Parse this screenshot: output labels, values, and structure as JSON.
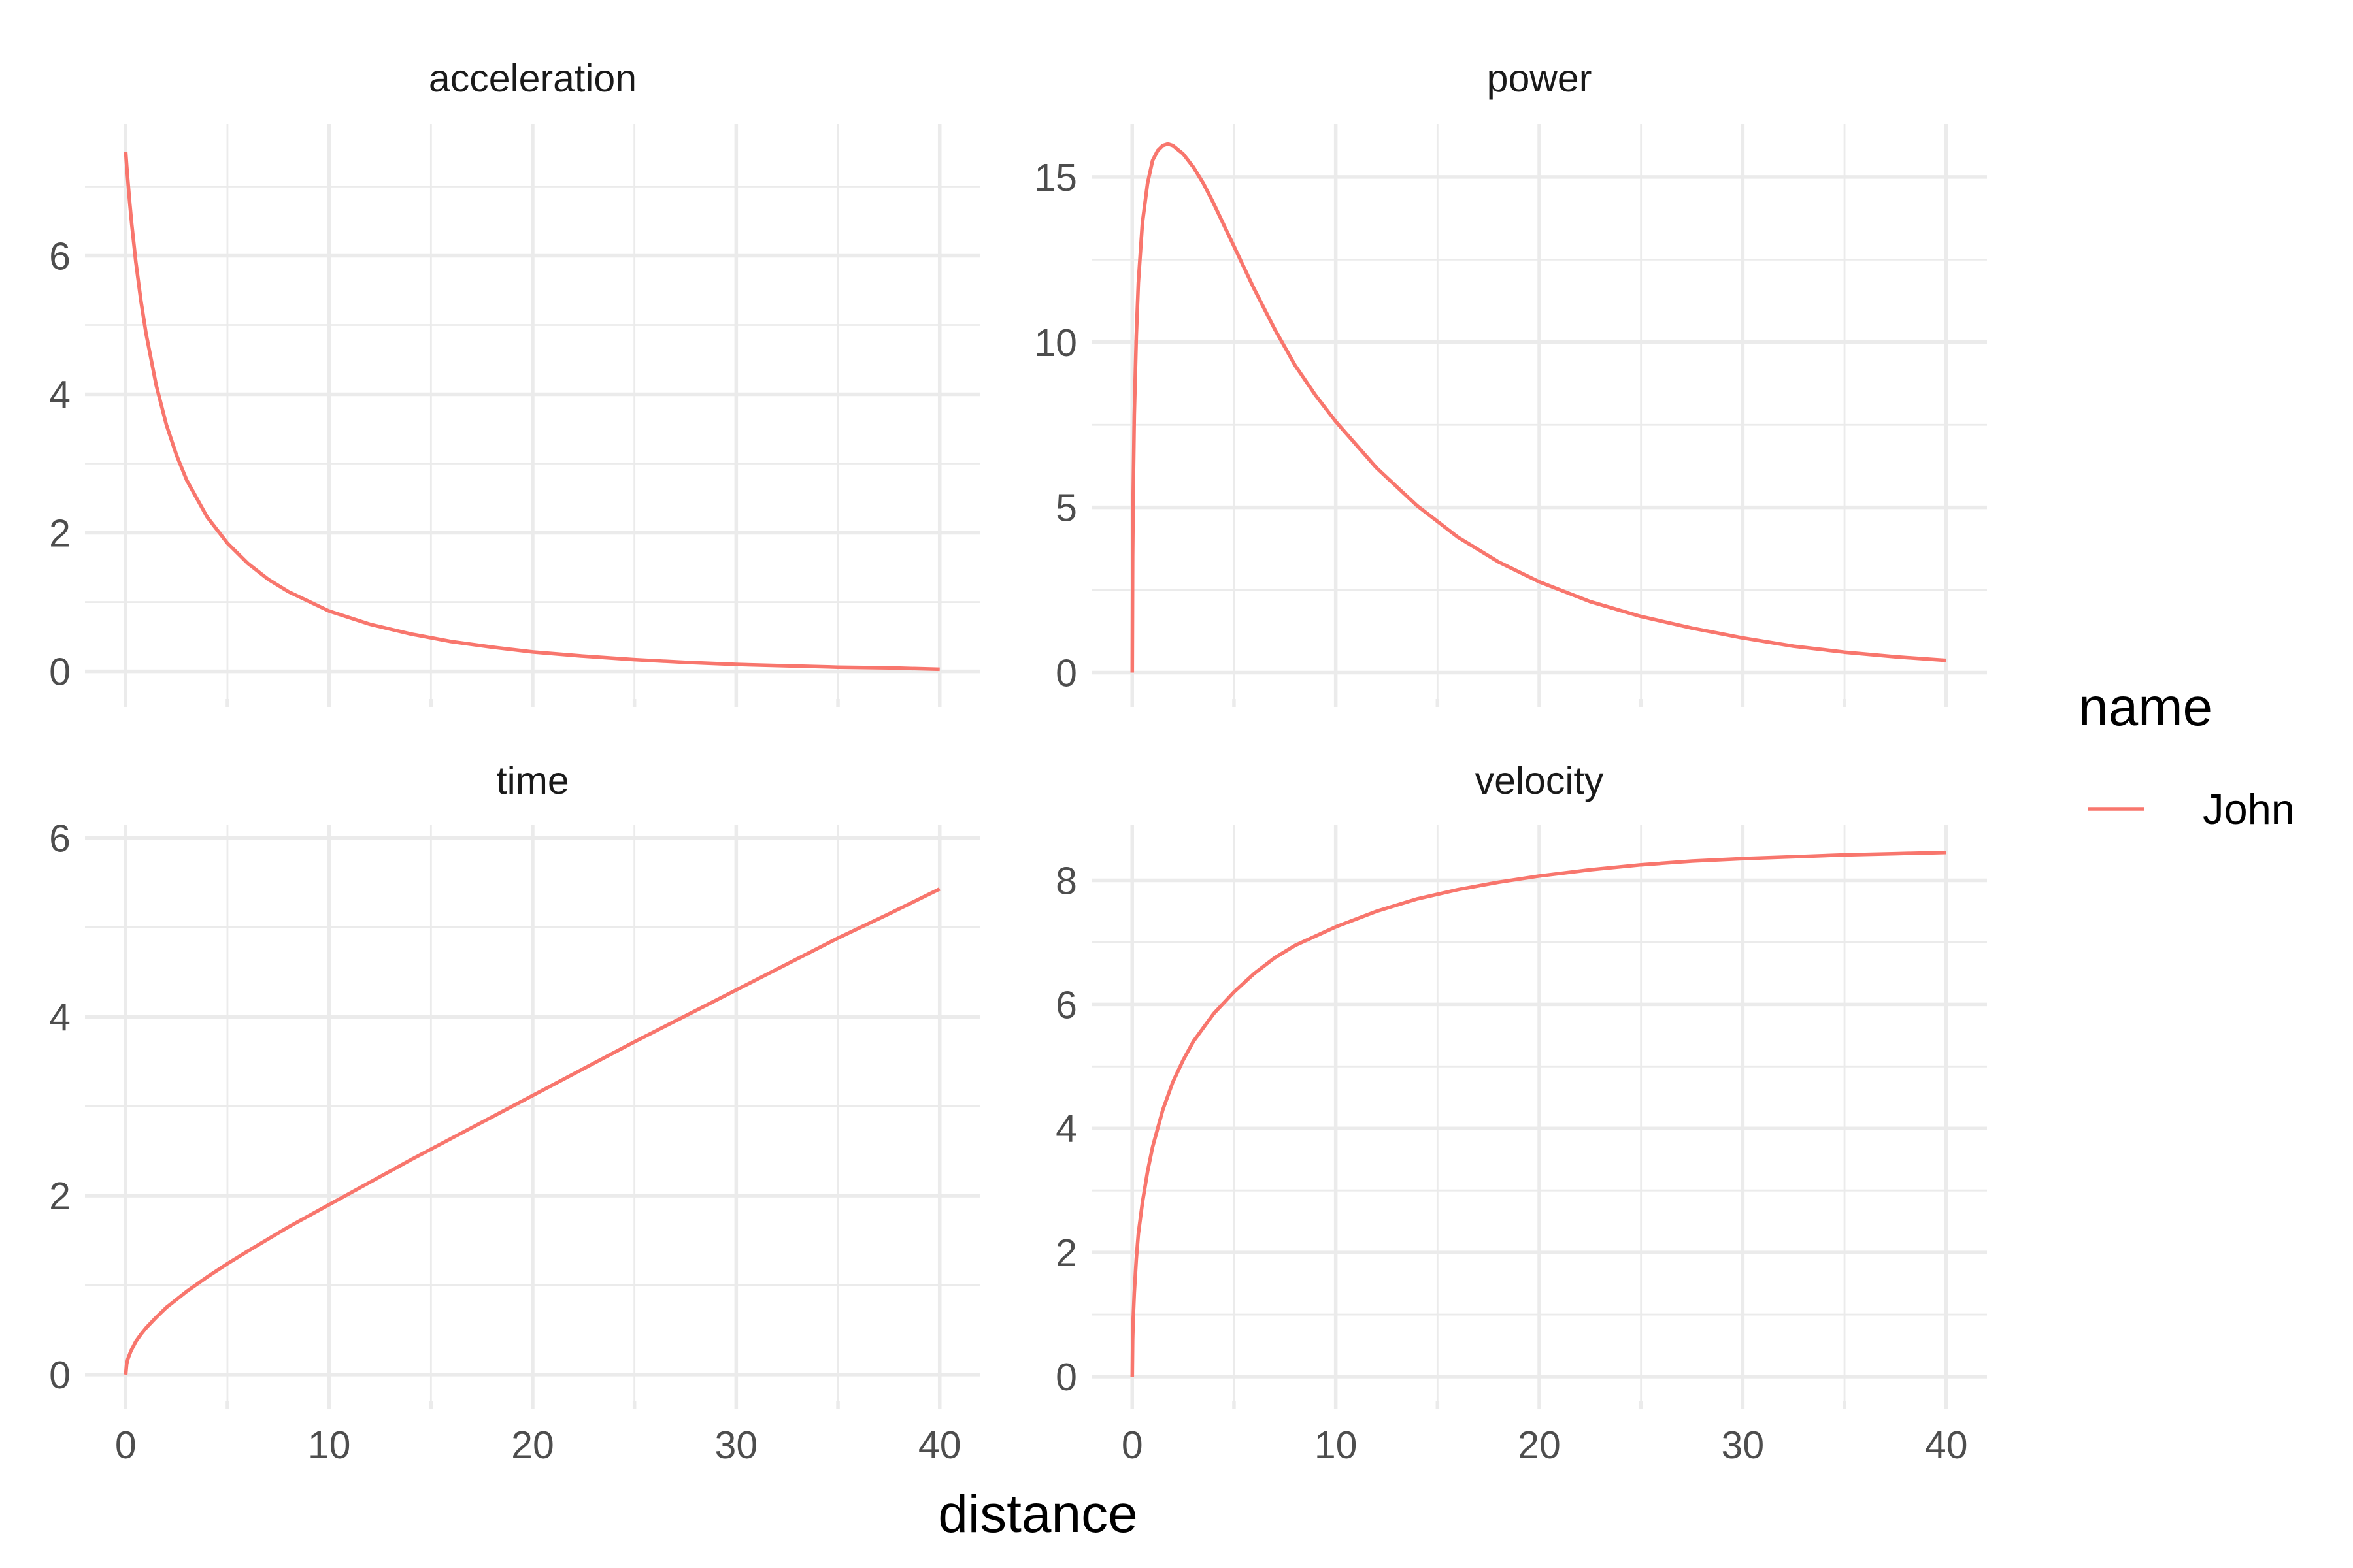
{
  "chart_data": {
    "type": "line",
    "xlabel": "distance",
    "legend": {
      "title": "name",
      "position": "right",
      "entries": [
        "John"
      ]
    },
    "colors": {
      "John": "#F8766D",
      "grid": "#EBEBEB",
      "text": "#4D4D4D"
    },
    "grid": true,
    "xlim": [
      -2,
      42
    ],
    "x_ticks": [
      0,
      10,
      20,
      30,
      40
    ],
    "x_tick_labels": [
      "0",
      "10",
      "20",
      "30",
      "40"
    ],
    "panels": [
      {
        "title": "acceleration",
        "ylim": [
          -0.4,
          7.9
        ],
        "y_ticks": [
          0,
          2,
          4,
          6
        ],
        "y_tick_labels": [
          "0",
          "2",
          "4",
          "6"
        ],
        "series": [
          {
            "name": "John",
            "x": [
              0,
              0.05,
              0.1,
              0.2,
              0.3,
              0.5,
              0.75,
              1,
              1.5,
              2,
              2.5,
              3,
              4,
              5,
              6,
              7,
              8,
              10,
              12,
              14,
              16,
              18,
              20,
              22.5,
              25,
              27.5,
              30,
              32.5,
              35,
              37.5,
              40
            ],
            "y": [
              7.5,
              7.3,
              7.11,
              6.76,
              6.45,
              5.91,
              5.35,
              4.88,
              4.13,
              3.56,
              3.12,
              2.76,
              2.23,
              1.85,
              1.56,
              1.33,
              1.15,
              0.87,
              0.68,
              0.54,
              0.43,
              0.35,
              0.28,
              0.22,
              0.17,
              0.13,
              0.1,
              0.08,
              0.06,
              0.05,
              0.03
            ]
          }
        ]
      },
      {
        "title": "power",
        "ylim": [
          -0.8,
          16.6
        ],
        "y_ticks": [
          0,
          5,
          10,
          15
        ],
        "y_tick_labels": [
          "0",
          "5",
          "10",
          "15"
        ],
        "series": [
          {
            "name": "John",
            "x": [
              0,
              0.02,
              0.05,
              0.1,
              0.2,
              0.3,
              0.5,
              0.75,
              1,
              1.25,
              1.5,
              1.75,
              2,
              2.5,
              3,
              3.5,
              4,
              5,
              6,
              7,
              8,
              9,
              10,
              12,
              14,
              16,
              18,
              20,
              22.5,
              25,
              27.5,
              30,
              32.5,
              35,
              37.5,
              40
            ],
            "y": [
              0,
              3.5,
              5.5,
              7.8,
              10.2,
              11.8,
              13.6,
              14.8,
              15.5,
              15.8,
              15.95,
              16.0,
              15.95,
              15.7,
              15.3,
              14.8,
              14.2,
              12.9,
              11.6,
              10.4,
              9.3,
              8.4,
              7.6,
              6.2,
              5.05,
              4.1,
              3.35,
              2.75,
              2.15,
              1.7,
              1.35,
              1.05,
              0.8,
              0.62,
              0.48,
              0.37
            ]
          }
        ]
      },
      {
        "title": "time",
        "ylim": [
          -0.3,
          6.15
        ],
        "y_ticks": [
          0,
          2,
          4,
          6
        ],
        "y_tick_labels": [
          "0",
          "2",
          "4",
          "6"
        ],
        "series": [
          {
            "name": "John",
            "x": [
              0,
              0.05,
              0.1,
              0.25,
              0.5,
              0.75,
              1,
              1.5,
              2,
              3,
              4,
              5,
              6,
              8,
              10,
              12,
              14,
              16,
              18,
              20,
              22.5,
              25,
              27.5,
              30,
              32.5,
              35,
              37.5,
              40
            ],
            "y": [
              0,
              0.12,
              0.17,
              0.26,
              0.37,
              0.45,
              0.52,
              0.64,
              0.75,
              0.93,
              1.09,
              1.24,
              1.38,
              1.65,
              1.9,
              2.15,
              2.4,
              2.64,
              2.88,
              3.12,
              3.42,
              3.72,
              4.01,
              4.3,
              4.59,
              4.88,
              5.15,
              5.43
            ]
          }
        ]
      },
      {
        "title": "velocity",
        "ylim": [
          -0.4,
          8.9
        ],
        "y_ticks": [
          0,
          2,
          4,
          6,
          8
        ],
        "y_tick_labels": [
          "0",
          "2",
          "4",
          "6",
          "8"
        ],
        "series": [
          {
            "name": "John",
            "x": [
              0,
              0.02,
              0.05,
              0.1,
              0.2,
              0.3,
              0.5,
              0.75,
              1,
              1.5,
              2,
              2.5,
              3,
              4,
              5,
              6,
              7,
              8,
              10,
              12,
              14,
              16,
              18,
              20,
              22.5,
              25,
              27.5,
              30,
              32.5,
              35,
              37.5,
              40
            ],
            "y": [
              0,
              0.6,
              0.95,
              1.35,
              1.9,
              2.3,
              2.8,
              3.3,
              3.7,
              4.3,
              4.75,
              5.1,
              5.4,
              5.85,
              6.2,
              6.5,
              6.75,
              6.95,
              7.25,
              7.5,
              7.7,
              7.85,
              7.97,
              8.07,
              8.17,
              8.25,
              8.31,
              8.35,
              8.38,
              8.41,
              8.43,
              8.45
            ]
          }
        ]
      }
    ]
  }
}
